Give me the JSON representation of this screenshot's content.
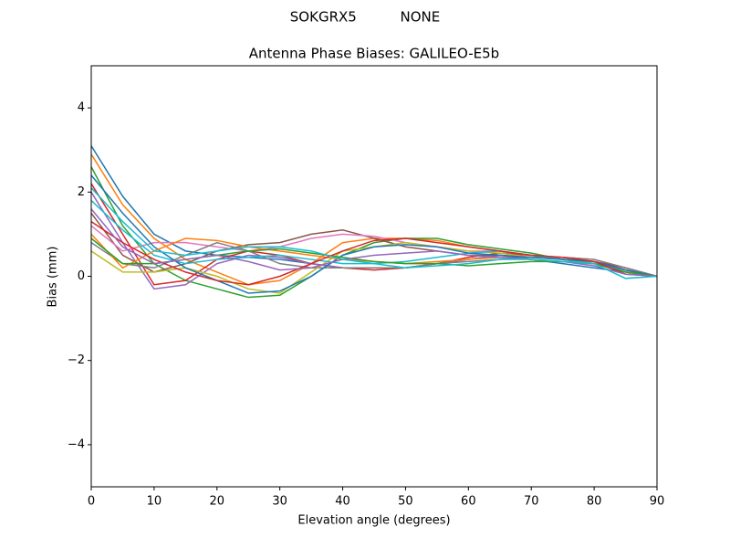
{
  "chart_data": {
    "type": "line",
    "suptitle": "SOKGRX5          NONE",
    "title": "Antenna Phase Biases: GALILEO-E5b",
    "x_label": "Elevation angle (degrees)",
    "y_label": "Bias (mm)",
    "x": [
      0,
      5,
      10,
      15,
      20,
      25,
      30,
      35,
      40,
      45,
      50,
      55,
      60,
      65,
      70,
      75,
      80,
      85,
      90
    ],
    "xlim": [
      0,
      90
    ],
    "ylim": [
      -5,
      5
    ],
    "xticks": [
      0,
      10,
      20,
      30,
      40,
      50,
      60,
      70,
      80,
      90
    ],
    "yticks": [
      {
        "value": -4,
        "label": "−4"
      },
      {
        "value": -2,
        "label": "−2"
      },
      0,
      2,
      4
    ],
    "series": [
      {
        "color": "#1f77b4",
        "values": [
          3.1,
          1.9,
          1.0,
          0.6,
          0.5,
          0.45,
          0.4,
          0.3,
          0.2,
          0.2,
          0.2,
          0.3,
          0.4,
          0.5,
          0.4,
          0.3,
          0.2,
          0.1,
          0
        ]
      },
      {
        "color": "#ff7f0e",
        "values": [
          2.9,
          1.7,
          0.9,
          0.4,
          0.1,
          -0.2,
          -0.1,
          0.3,
          0.8,
          0.9,
          0.9,
          0.85,
          0.7,
          0.6,
          0.5,
          0.45,
          0.4,
          0.2,
          0
        ]
      },
      {
        "color": "#2ca02c",
        "values": [
          2.6,
          1.2,
          0.3,
          -0.1,
          -0.3,
          -0.5,
          -0.45,
          0,
          0.5,
          0.8,
          0.9,
          0.9,
          0.75,
          0.65,
          0.55,
          0.4,
          0.3,
          0.15,
          0
        ]
      },
      {
        "color": "#d62728",
        "values": [
          2.2,
          1.0,
          -0.2,
          -0.1,
          0.4,
          0.6,
          0.5,
          0.3,
          0.2,
          0.15,
          0.2,
          0.3,
          0.45,
          0.55,
          0.5,
          0.4,
          0.35,
          0.2,
          0
        ]
      },
      {
        "color": "#9467bd",
        "values": [
          2.0,
          0.8,
          -0.3,
          -0.2,
          0.3,
          0.5,
          0.45,
          0.3,
          0.2,
          0.2,
          0.2,
          0.3,
          0.4,
          0.5,
          0.45,
          0.45,
          0.35,
          0.15,
          0
        ]
      },
      {
        "color": "#8c564b",
        "values": [
          1.5,
          0.5,
          0.1,
          0.3,
          0.6,
          0.75,
          0.8,
          1.0,
          1.1,
          0.9,
          0.7,
          0.6,
          0.5,
          0.5,
          0.45,
          0.4,
          0.3,
          0.1,
          0
        ]
      },
      {
        "color": "#e377c2",
        "values": [
          1.2,
          0.6,
          0.8,
          0.8,
          0.7,
          0.6,
          0.7,
          0.9,
          1.0,
          0.95,
          0.8,
          0.7,
          0.6,
          0.6,
          0.5,
          0.4,
          0.3,
          0.1,
          0
        ]
      },
      {
        "color": "#7f7f7f",
        "values": [
          0.8,
          0.3,
          0.2,
          0.5,
          0.8,
          0.6,
          0.3,
          0.2,
          0.2,
          0.2,
          0.2,
          0.3,
          0.35,
          0.4,
          0.45,
          0.45,
          0.4,
          0.2,
          0
        ]
      },
      {
        "color": "#bcbd22",
        "values": [
          0.6,
          0.1,
          0.1,
          0.2,
          0.0,
          -0.3,
          -0.4,
          0.1,
          0.6,
          0.7,
          0.8,
          0.7,
          0.6,
          0.55,
          0.45,
          0.4,
          0.3,
          0.1,
          0
        ]
      },
      {
        "color": "#17becf",
        "values": [
          1.8,
          1.1,
          0.5,
          0.3,
          0.4,
          0.45,
          0.5,
          0.4,
          0.3,
          0.3,
          0.35,
          0.45,
          0.55,
          0.6,
          0.5,
          0.4,
          0.3,
          0.15,
          0
        ]
      },
      {
        "color": "#1f77b4",
        "values": [
          2.4,
          1.5,
          0.7,
          0.2,
          -0.1,
          -0.4,
          -0.35,
          0.0,
          0.5,
          0.7,
          0.75,
          0.7,
          0.55,
          0.5,
          0.45,
          0.4,
          0.35,
          0.15,
          0
        ]
      },
      {
        "color": "#ff7f0e",
        "values": [
          1.0,
          0.2,
          0.6,
          0.9,
          0.85,
          0.7,
          0.6,
          0.5,
          0.4,
          0.35,
          0.3,
          0.35,
          0.4,
          0.45,
          0.4,
          0.35,
          0.3,
          0.1,
          0
        ]
      },
      {
        "color": "#2ca02c",
        "values": [
          0.9,
          0.3,
          0.3,
          0.4,
          0.5,
          0.6,
          0.65,
          0.55,
          0.45,
          0.35,
          0.3,
          0.3,
          0.25,
          0.3,
          0.35,
          0.35,
          0.3,
          0.1,
          0
        ]
      },
      {
        "color": "#d62728",
        "values": [
          1.3,
          0.8,
          0.4,
          0.1,
          -0.1,
          -0.2,
          0,
          0.3,
          0.6,
          0.85,
          0.9,
          0.8,
          0.7,
          0.6,
          0.5,
          0.45,
          0.35,
          0.05,
          0
        ]
      },
      {
        "color": "#9467bd",
        "values": [
          1.6,
          0.7,
          0.3,
          0.4,
          0.5,
          0.35,
          0.15,
          0.2,
          0.4,
          0.5,
          0.55,
          0.6,
          0.5,
          0.45,
          0.4,
          0.35,
          0.25,
          0.05,
          0
        ]
      },
      {
        "color": "#17becf",
        "values": [
          2.1,
          1.3,
          0.6,
          0.5,
          0.6,
          0.7,
          0.7,
          0.6,
          0.4,
          0.3,
          0.2,
          0.25,
          0.3,
          0.4,
          0.4,
          0.35,
          0.3,
          -0.05,
          0
        ]
      }
    ]
  }
}
